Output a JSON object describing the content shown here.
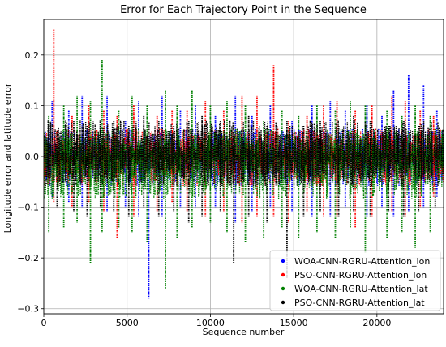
{
  "chart_data": {
    "type": "scatter",
    "title": "Error for Each Trajectory Point in the Sequence",
    "xlabel": "Sequence number",
    "ylabel": "Longitude error and latitude error",
    "xlim": [
      0,
      24000
    ],
    "ylim": [
      -0.31,
      0.27
    ],
    "xticks": [
      0,
      5000,
      10000,
      15000,
      20000
    ],
    "xtick_labels": [
      "0",
      "5000",
      "10000",
      "15000",
      "20000"
    ],
    "yticks": [
      -0.3,
      -0.2,
      -0.1,
      0.0,
      0.1,
      0.2
    ],
    "ytick_labels": [
      "−0.3",
      "−0.2",
      "−0.1",
      "0.0",
      "0.1",
      "0.2"
    ],
    "grid": true,
    "legend_position": "lower-right",
    "series": [
      {
        "name": "WOA-CNN-RGRU-Attention_lon",
        "color": "#0000ff",
        "x": [
          500,
          1500,
          2300,
          3800,
          4900,
          5700,
          6300,
          7100,
          8200,
          9100,
          10300,
          11500,
          12500,
          13600,
          14900,
          16100,
          17200,
          18100,
          19400,
          20300,
          21000,
          21900,
          22800,
          23600
        ],
        "y_max": [
          0.11,
          0.09,
          0.12,
          0.12,
          0.07,
          0.11,
          -0.02,
          0.12,
          0.09,
          0.1,
          0.08,
          0.12,
          0.08,
          0.1,
          0.07,
          0.1,
          0.11,
          0.09,
          0.1,
          0.08,
          0.13,
          0.16,
          0.14,
          0.09
        ],
        "y_min": [
          -0.08,
          -0.09,
          -0.1,
          -0.11,
          -0.1,
          -0.12,
          -0.28,
          -0.12,
          -0.1,
          -0.1,
          -0.1,
          -0.13,
          -0.11,
          -0.1,
          -0.11,
          -0.12,
          -0.12,
          -0.1,
          -0.12,
          -0.1,
          -0.12,
          -0.11,
          -0.1,
          -0.08
        ]
      },
      {
        "name": "PSO-CNN-RGRU-Attention_lon",
        "color": "#ff0000",
        "x": [
          600,
          1700,
          2700,
          3600,
          4400,
          5400,
          6800,
          7700,
          8600,
          9700,
          10800,
          11900,
          12800,
          13800,
          14700,
          15800,
          16800,
          17600,
          18700,
          19700,
          20900,
          21700,
          22600,
          23400
        ],
        "y_max": [
          0.25,
          0.08,
          0.1,
          0.09,
          0.08,
          0.1,
          0.08,
          0.09,
          0.09,
          0.11,
          0.09,
          0.12,
          0.12,
          0.18,
          0.07,
          0.08,
          0.1,
          0.11,
          0.09,
          0.1,
          0.12,
          0.11,
          0.09,
          0.08
        ],
        "y_min": [
          -0.09,
          -0.1,
          -0.09,
          -0.11,
          -0.16,
          -0.12,
          -0.11,
          -0.09,
          -0.11,
          -0.12,
          -0.11,
          -0.13,
          -0.12,
          -0.12,
          -0.13,
          -0.11,
          -0.12,
          -0.12,
          -0.14,
          -0.12,
          -0.11,
          -0.12,
          -0.1,
          -0.08
        ]
      },
      {
        "name": "WOA-CNN-RGRU-Attention_lat",
        "color": "#008000",
        "x": [
          300,
          1200,
          2000,
          2800,
          3500,
          4500,
          5300,
          6200,
          7300,
          8000,
          8900,
          10000,
          11000,
          12100,
          13200,
          14300,
          15300,
          16400,
          17500,
          18400,
          19300,
          20600,
          21500,
          22300,
          23200
        ],
        "y_max": [
          0.08,
          0.1,
          0.12,
          0.11,
          0.19,
          0.09,
          0.12,
          0.1,
          0.13,
          0.1,
          0.13,
          0.1,
          0.11,
          0.1,
          0.07,
          0.09,
          0.08,
          0.1,
          0.09,
          0.11,
          0.1,
          0.09,
          0.08,
          0.1,
          0.08
        ],
        "y_min": [
          -0.15,
          -0.14,
          -0.13,
          -0.21,
          -0.15,
          -0.14,
          -0.15,
          -0.17,
          -0.26,
          -0.16,
          -0.14,
          -0.13,
          -0.15,
          -0.17,
          -0.16,
          -0.14,
          -0.16,
          -0.15,
          -0.16,
          -0.14,
          -0.19,
          -0.16,
          -0.15,
          -0.18,
          -0.15
        ]
      },
      {
        "name": "PSO-CNN-RGRU-Attention_lat",
        "color": "#000000",
        "x": [
          800,
          1800,
          2600,
          3400,
          4200,
          5100,
          6000,
          6900,
          7800,
          8700,
          9500,
          10600,
          11400,
          12300,
          13400,
          14600,
          15600,
          16600,
          17700,
          18600,
          19600,
          20700,
          21600,
          22500,
          23500
        ],
        "y_max": [
          0.05,
          0.07,
          0.06,
          0.06,
          0.07,
          0.06,
          0.08,
          0.07,
          0.06,
          0.07,
          0.08,
          0.07,
          0.06,
          0.08,
          0.06,
          0.07,
          0.06,
          0.07,
          0.06,
          0.08,
          0.07,
          0.06,
          0.07,
          0.06,
          0.05
        ],
        "y_min": [
          -0.1,
          -0.11,
          -0.12,
          -0.1,
          -0.11,
          -0.12,
          -0.1,
          -0.12,
          -0.11,
          -0.13,
          -0.12,
          -0.11,
          -0.21,
          -0.12,
          -0.13,
          -0.24,
          -0.12,
          -0.11,
          -0.12,
          -0.11,
          -0.12,
          -0.11,
          -0.12,
          -0.11,
          -0.1
        ]
      }
    ]
  }
}
